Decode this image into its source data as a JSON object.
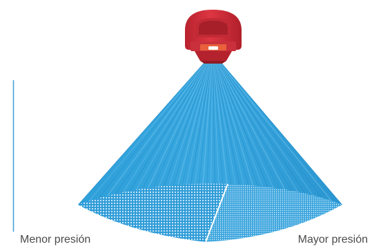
{
  "labels": {
    "low_pressure": "Menor presión",
    "high_pressure": "Mayor presión"
  },
  "colors": {
    "nozzle_red": "#d32f3a",
    "nozzle_dark": "#9e1d27",
    "nozzle_orange": "#e8603c",
    "spray_blue": "#2a9ad6",
    "spray_light": "#5cb8e8",
    "scale_line": "#3a9fd8"
  },
  "icons": {
    "nozzle": "spray-nozzle-icon"
  }
}
